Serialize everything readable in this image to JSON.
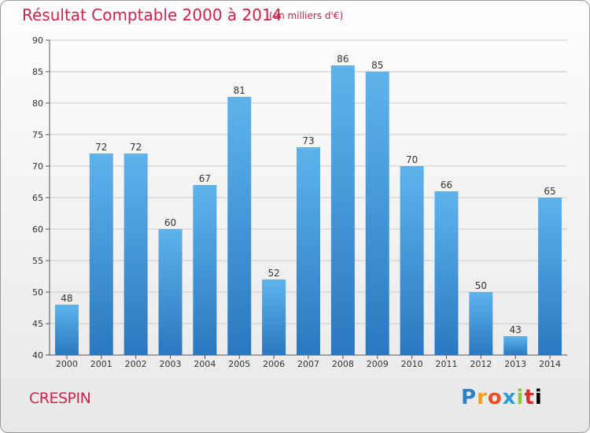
{
  "header": {
    "title": "Résultat Comptable 2000 à 2014",
    "subtitle": "(en milliers d'€)"
  },
  "footer": {
    "commune": "CRESPIN",
    "logo": [
      "P",
      "r",
      "o",
      "x",
      "i",
      "t",
      "i"
    ]
  },
  "colors": {
    "title": "#c8244c",
    "bar_top": "#5eb3ec",
    "bar_bottom": "#2a78c0",
    "grid": "#c8c8c8"
  },
  "chart_data": {
    "type": "bar",
    "categories": [
      "2000",
      "2001",
      "2002",
      "2003",
      "2004",
      "2005",
      "2006",
      "2007",
      "2008",
      "2009",
      "2010",
      "2011",
      "2012",
      "2013",
      "2014"
    ],
    "values": [
      48,
      72,
      72,
      60,
      67,
      81,
      52,
      73,
      86,
      85,
      70,
      66,
      50,
      43,
      65
    ],
    "ylim": [
      40,
      90
    ],
    "yticks": [
      40,
      45,
      50,
      55,
      60,
      65,
      70,
      75,
      80,
      85,
      90
    ],
    "grid": true
  }
}
